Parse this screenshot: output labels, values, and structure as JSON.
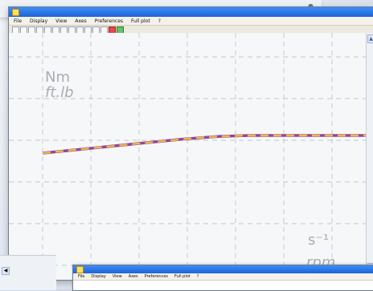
{
  "windows": [
    {
      "title": "",
      "menu": [
        "File",
        "Display",
        "View",
        "Axes",
        "Preferences",
        "Full plot",
        "?"
      ]
    },
    {
      "title": "",
      "menu": [
        "File",
        "Display",
        "View",
        "Axes",
        "Preferences",
        "Full plot",
        "?"
      ]
    }
  ],
  "toolbar_icons": [
    "zoom-in-icon",
    "zoom-out-icon",
    "pan-icon",
    "fit-icon",
    "grid-icon",
    "cursor-icon",
    "measure-icon",
    "print-icon",
    "copy-icon",
    "export-icon",
    "settings-icon",
    "help-icon",
    "record-icon",
    "stop-icon"
  ],
  "plot": {
    "y_labels": [
      "Nm",
      "ft.lb"
    ],
    "x_labels": [
      "s⁻¹",
      "rpm"
    ],
    "colors": {
      "series1": "#8b4a9a",
      "series2": "#f2b24e",
      "grid": "#b3b8bf",
      "background": "#f6f7f8"
    }
  },
  "chart_data": {
    "type": "line",
    "series": [
      {
        "values": [
          0,
          0.55,
          0.8,
          0.95,
          1,
          1,
          1,
          1,
          1,
          1
        ]
      },
      {
        "values": [
          0,
          0.55,
          0.8,
          0.95,
          1,
          1,
          1,
          1,
          1,
          1
        ]
      }
    ]
  }
}
